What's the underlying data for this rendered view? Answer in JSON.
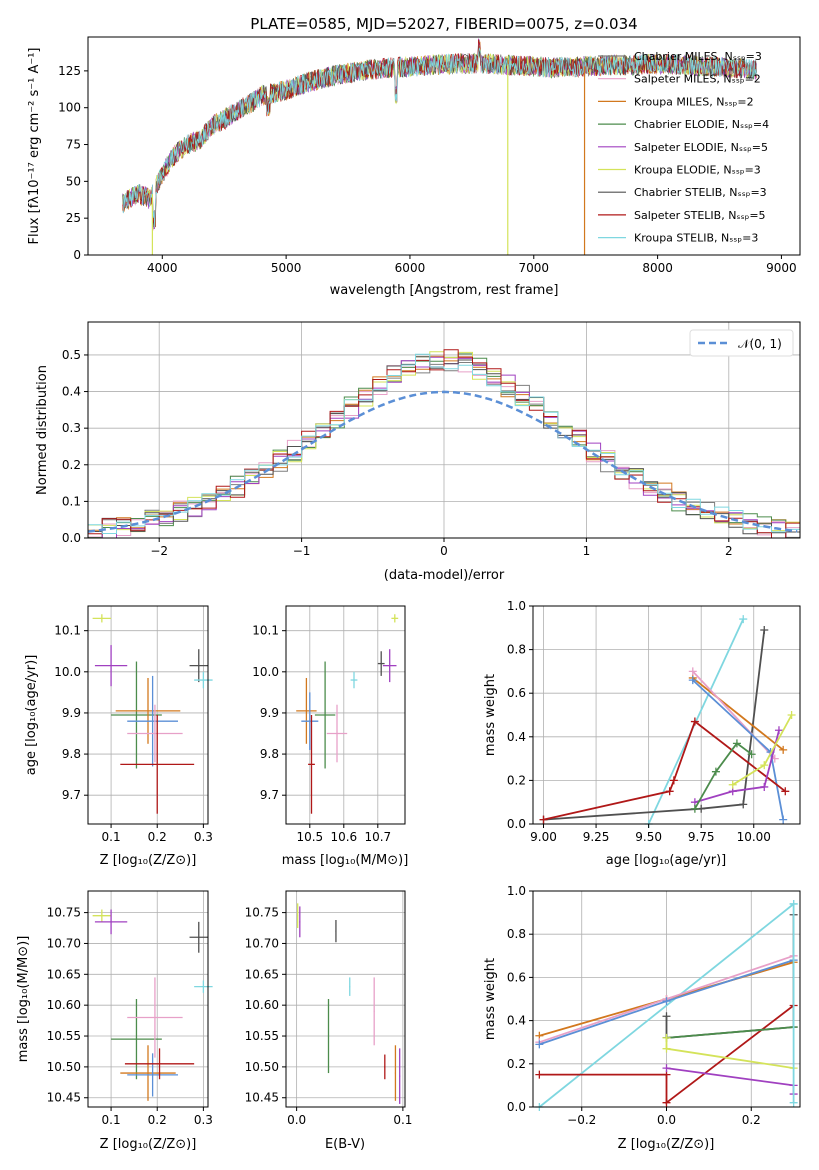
{
  "chart_data": [
    {
      "id": "spectrum",
      "type": "line",
      "title": "PLATE=0585, MJD=52027, FIBERID=0075, z=0.034",
      "xlabel": "wavelength [Angstrom, rest frame]",
      "ylabel": "Flux [fλ10⁻¹⁷ erg cm⁻² s⁻¹ A⁻¹]",
      "xlim": [
        3400,
        9150
      ],
      "ylim": [
        0,
        148
      ],
      "xticks": [
        "4000",
        "5000",
        "6000",
        "7000",
        "8000",
        "9000"
      ],
      "yticks": [
        "0",
        "25",
        "50",
        "75",
        "100",
        "125"
      ],
      "legend_position": "top-right",
      "legend": [
        {
          "name": "Chabrier MILES, Nₛₛₚ=3",
          "color": "#7f7f7f"
        },
        {
          "name": "Salpeter MILES, Nₛₛₚ=2",
          "color": "#e7a0c8"
        },
        {
          "name": "Kroupa MILES, Nₛₛₚ=2",
          "color": "#d2781e"
        },
        {
          "name": "Chabrier ELODIE, Nₛₛₚ=4",
          "color": "#4c8c4c"
        },
        {
          "name": "Salpeter ELODIE, Nₛₛₚ=5",
          "color": "#a040c0"
        },
        {
          "name": "Kroupa ELODIE, Nₛₛₚ=3",
          "color": "#d4e35a"
        },
        {
          "name": "Chabrier STELIB, Nₛₛₚ=3",
          "color": "#505050"
        },
        {
          "name": "Salpeter STELIB, Nₛₛₚ=5",
          "color": "#b01818"
        },
        {
          "name": "Kroupa STELIB, Nₛₛₚ=3",
          "color": "#7fd7e0"
        }
      ],
      "continuum": {
        "x": [
          3680,
          3800,
          3900,
          4000,
          4100,
          4200,
          4300,
          4400,
          4500,
          4600,
          4700,
          4800,
          4900,
          5000,
          5200,
          5400,
          5600,
          5800,
          6000,
          6200,
          6400,
          6600,
          6800,
          7000,
          7200,
          7400,
          7600,
          7800,
          8000,
          8200,
          8400,
          8600,
          8800
        ],
        "y": [
          35,
          42,
          38,
          55,
          68,
          75,
          78,
          88,
          92,
          98,
          102,
          108,
          110,
          112,
          118,
          122,
          125,
          127,
          128,
          129,
          130,
          130,
          129,
          128,
          127,
          128,
          129,
          129,
          130,
          129,
          128,
          127,
          126
        ]
      },
      "dropouts": [
        {
          "x": 3920,
          "color": "#d4e35a"
        },
        {
          "x": 6790,
          "color": "#d4e35a"
        },
        {
          "x": 7410,
          "color": "#d2781e"
        }
      ]
    },
    {
      "id": "residuals",
      "type": "line",
      "xlabel": "(data-model)/error",
      "ylabel": "Normed distribution",
      "xlim": [
        -2.5,
        2.5
      ],
      "ylim": [
        0,
        0.59
      ],
      "xticks": [
        "−2",
        "−1",
        "0",
        "1",
        "2"
      ],
      "yticks": [
        "0.0",
        "0.1",
        "0.2",
        "0.3",
        "0.4",
        "0.5"
      ],
      "legend_position": "top-right",
      "legend": [
        {
          "name": "𝒩(0, 1)",
          "color": "#5b8fd6"
        }
      ],
      "histogram_bin_width": 0.1,
      "histogram_colors": [
        "#7f7f7f",
        "#e7a0c8",
        "#d2781e",
        "#4c8c4c",
        "#a040c0",
        "#d4e35a",
        "#505050",
        "#b01818",
        "#7fd7e0"
      ]
    },
    {
      "id": "age-vs-Z",
      "type": "scatter",
      "xlabel": "Z [log₁₀(Z/Z⊙)]",
      "ylabel": "age  [log₁₀(age/yr)]",
      "xlim": [
        0.05,
        0.31
      ],
      "ylim": [
        9.63,
        10.16
      ],
      "xticks": [
        "0.1",
        "0.2",
        "0.3"
      ],
      "yticks": [
        "9.7",
        "9.8",
        "9.9",
        "10.0",
        "10.1"
      ],
      "points": [
        {
          "x": 0.08,
          "y": 10.13,
          "xerr": 0.02,
          "yerr": 0.01,
          "color": "#d4e35a"
        },
        {
          "x": 0.1,
          "y": 10.015,
          "xerr": 0.035,
          "yerr": 0.05,
          "color": "#a040c0"
        },
        {
          "x": 0.29,
          "y": 10.015,
          "xerr": 0.02,
          "yerr": 0.04,
          "color": "#505050"
        },
        {
          "x": 0.3,
          "y": 9.98,
          "xerr": 0.02,
          "yerr": 0.02,
          "color": "#7fd7e0"
        },
        {
          "x": 0.155,
          "y": 9.895,
          "xerr": 0.055,
          "yerr": 0.13,
          "color": "#4c8c4c"
        },
        {
          "x": 0.18,
          "y": 9.905,
          "xerr": 0.07,
          "yerr": 0.08,
          "color": "#d2781e"
        },
        {
          "x": 0.19,
          "y": 9.88,
          "xerr": 0.055,
          "yerr": 0.11,
          "color": "#5b8fd6"
        },
        {
          "x": 0.195,
          "y": 9.85,
          "xerr": 0.06,
          "yerr": 0.07,
          "color": "#e7a0c8"
        },
        {
          "x": 0.2,
          "y": 9.775,
          "xerr": 0.08,
          "yerr": 0.12,
          "color": "#b01818"
        }
      ]
    },
    {
      "id": "age-vs-mass",
      "type": "scatter",
      "xlabel": "mass [log₁₀(M/M⊙)]",
      "ylabel": "",
      "xlim": [
        10.43,
        10.78
      ],
      "ylim": [
        9.63,
        10.16
      ],
      "xticks": [
        "10.5",
        "10.6",
        "10.7"
      ],
      "yticks": [
        "9.7",
        "9.8",
        "9.9",
        "10.0",
        "10.1"
      ],
      "points": [
        {
          "x": 10.75,
          "y": 10.13,
          "xerr": 0.01,
          "yerr": 0.01,
          "color": "#d4e35a"
        },
        {
          "x": 10.735,
          "y": 10.015,
          "xerr": 0.02,
          "yerr": 0.04,
          "color": "#a040c0"
        },
        {
          "x": 10.71,
          "y": 10.02,
          "xerr": 0.01,
          "yerr": 0.03,
          "color": "#505050"
        },
        {
          "x": 10.63,
          "y": 9.98,
          "xerr": 0.01,
          "yerr": 0.02,
          "color": "#7fd7e0"
        },
        {
          "x": 10.545,
          "y": 9.895,
          "xerr": 0.03,
          "yerr": 0.13,
          "color": "#4c8c4c"
        },
        {
          "x": 10.49,
          "y": 9.905,
          "xerr": 0.03,
          "yerr": 0.08,
          "color": "#d2781e"
        },
        {
          "x": 10.5,
          "y": 9.88,
          "xerr": 0.025,
          "yerr": 0.07,
          "color": "#5b8fd6"
        },
        {
          "x": 10.58,
          "y": 9.85,
          "xerr": 0.03,
          "yerr": 0.07,
          "color": "#e7a0c8"
        },
        {
          "x": 10.505,
          "y": 9.775,
          "xerr": 0.01,
          "yerr": 0.12,
          "color": "#b01818"
        }
      ]
    },
    {
      "id": "weight-vs-age",
      "type": "line",
      "xlabel": "age  [log₁₀(age/yr)]",
      "ylabel": "mass weight",
      "xlim": [
        8.95,
        10.22
      ],
      "ylim": [
        0,
        1.0
      ],
      "xticks": [
        "9.00",
        "9.25",
        "9.50",
        "9.75",
        "10.00"
      ],
      "yticks": [
        "0.0",
        "0.2",
        "0.4",
        "0.6",
        "0.8",
        "1.0"
      ],
      "series": [
        {
          "color": "#7fd7e0",
          "x": [
            9.5,
            9.95
          ],
          "y": [
            0.0,
            0.94
          ]
        },
        {
          "color": "#505050",
          "x": [
            9.0,
            9.75,
            9.95,
            10.05
          ],
          "y": [
            0.02,
            0.07,
            0.09,
            0.89
          ]
        },
        {
          "color": "#d2781e",
          "x": [
            9.71,
            10.14
          ],
          "y": [
            0.67,
            0.34
          ]
        },
        {
          "color": "#e7a0c8",
          "x": [
            9.71,
            10.1
          ],
          "y": [
            0.7,
            0.3
          ]
        },
        {
          "color": "#5b8fd6",
          "x": [
            9.71,
            10.08,
            10.14
          ],
          "y": [
            0.66,
            0.33,
            0.02
          ]
        },
        {
          "color": "#b01818",
          "x": [
            9.0,
            9.6,
            9.62,
            9.72,
            10.15
          ],
          "y": [
            0.02,
            0.15,
            0.2,
            0.47,
            0.15
          ]
        },
        {
          "color": "#a040c0",
          "x": [
            9.72,
            9.9,
            10.05,
            10.12
          ],
          "y": [
            0.1,
            0.15,
            0.17,
            0.43
          ]
        },
        {
          "color": "#4c8c4c",
          "x": [
            9.72,
            9.82,
            9.92,
            9.99
          ],
          "y": [
            0.07,
            0.24,
            0.37,
            0.32
          ]
        },
        {
          "color": "#d4e35a",
          "x": [
            9.9,
            10.05,
            10.18
          ],
          "y": [
            0.18,
            0.27,
            0.5
          ]
        }
      ]
    },
    {
      "id": "mass-vs-Z",
      "type": "scatter",
      "xlabel": "Z [log₁₀(Z/Z⊙)]",
      "ylabel": "mass [log₁₀(M/M⊙)]",
      "xlim": [
        0.05,
        0.31
      ],
      "ylim": [
        10.435,
        10.785
      ],
      "xticks": [
        "0.1",
        "0.2",
        "0.3"
      ],
      "yticks": [
        "10.45",
        "10.50",
        "10.55",
        "10.60",
        "10.65",
        "10.70",
        "10.75"
      ],
      "points": [
        {
          "x": 0.08,
          "y": 10.745,
          "xerr": 0.02,
          "yerr": 0.01,
          "color": "#d4e35a"
        },
        {
          "x": 0.1,
          "y": 10.735,
          "xerr": 0.035,
          "yerr": 0.02,
          "color": "#a040c0"
        },
        {
          "x": 0.29,
          "y": 10.71,
          "xerr": 0.02,
          "yerr": 0.025,
          "color": "#505050"
        },
        {
          "x": 0.3,
          "y": 10.63,
          "xerr": 0.02,
          "yerr": 0.01,
          "color": "#7fd7e0"
        },
        {
          "x": 0.155,
          "y": 10.545,
          "xerr": 0.055,
          "yerr": 0.065,
          "color": "#4c8c4c"
        },
        {
          "x": 0.18,
          "y": 10.49,
          "xerr": 0.06,
          "yerr": 0.045,
          "color": "#d2781e"
        },
        {
          "x": 0.19,
          "y": 10.487,
          "xerr": 0.055,
          "yerr": 0.035,
          "color": "#5b8fd6"
        },
        {
          "x": 0.195,
          "y": 10.58,
          "xerr": 0.06,
          "yerr": 0.065,
          "color": "#e7a0c8"
        },
        {
          "x": 0.205,
          "y": 10.505,
          "xerr": 0.075,
          "yerr": 0.025,
          "color": "#b01818"
        }
      ]
    },
    {
      "id": "mass-vs-ebv",
      "type": "scatter",
      "xlabel": "E(B-V)",
      "ylabel": "",
      "xlim": [
        -0.01,
        0.102
      ],
      "ylim": [
        10.435,
        10.785
      ],
      "xticks": [
        "0.0",
        "0.1"
      ],
      "yticks": [
        "10.45",
        "10.50",
        "10.55",
        "10.60",
        "10.65",
        "10.70",
        "10.75"
      ],
      "points": [
        {
          "x": 0.001,
          "y": 10.745,
          "xerr": 0.0005,
          "yerr": 0.02,
          "color": "#d4e35a"
        },
        {
          "x": 0.003,
          "y": 10.735,
          "xerr": 0.0005,
          "yerr": 0.025,
          "color": "#a040c0"
        },
        {
          "x": 0.037,
          "y": 10.72,
          "xerr": 0.0005,
          "yerr": 0.018,
          "color": "#505050"
        },
        {
          "x": 0.05,
          "y": 10.63,
          "xerr": 0.0005,
          "yerr": 0.015,
          "color": "#7fd7e0"
        },
        {
          "x": 0.03,
          "y": 10.55,
          "xerr": 0.0005,
          "yerr": 0.06,
          "color": "#4c8c4c"
        },
        {
          "x": 0.073,
          "y": 10.59,
          "xerr": 0.0005,
          "yerr": 0.055,
          "color": "#e7a0c8"
        },
        {
          "x": 0.083,
          "y": 10.5,
          "xerr": 0.0005,
          "yerr": 0.02,
          "color": "#b01818"
        },
        {
          "x": 0.093,
          "y": 10.49,
          "xerr": 0.0005,
          "yerr": 0.045,
          "color": "#d2781e"
        },
        {
          "x": 0.097,
          "y": 10.485,
          "xerr": 0.0005,
          "yerr": 0.045,
          "color": "#a040c0"
        }
      ]
    },
    {
      "id": "weight-vs-Z",
      "type": "line",
      "xlabel": "Z [log₁₀(Z/Z⊙)]",
      "ylabel": "mass weight",
      "xlim": [
        -0.315,
        0.315
      ],
      "ylim": [
        0,
        1.0
      ],
      "xticks": [
        "−0.2",
        "0.0",
        "0.2"
      ],
      "yticks": [
        "0.0",
        "0.2",
        "0.4",
        "0.6",
        "0.8",
        "1.0"
      ],
      "series": [
        {
          "color": "#7fd7e0",
          "x": [
            -0.3,
            0.3
          ],
          "y": [
            0.0,
            0.94
          ]
        },
        {
          "color": "#505050",
          "x": [
            0.0,
            0.0,
            0.3,
            0.3
          ],
          "y": [
            0.42,
            0.32,
            0.37,
            0.89
          ]
        },
        {
          "color": "#d2781e",
          "x": [
            -0.3,
            0.0,
            0.3
          ],
          "y": [
            0.33,
            0.5,
            0.67
          ]
        },
        {
          "color": "#e7a0c8",
          "x": [
            -0.3,
            0.0,
            0.3
          ],
          "y": [
            0.3,
            0.5,
            0.7
          ]
        },
        {
          "color": "#5b8fd6",
          "x": [
            -0.3,
            0.0,
            0.3
          ],
          "y": [
            0.29,
            0.49,
            0.68
          ]
        },
        {
          "color": "#b01818",
          "x": [
            -0.3,
            0.0,
            0.0,
            0.3
          ],
          "y": [
            0.15,
            0.15,
            0.02,
            0.47
          ]
        },
        {
          "color": "#a040c0",
          "x": [
            0.0,
            0.3,
            0.3
          ],
          "y": [
            0.18,
            0.1,
            0.06
          ]
        },
        {
          "color": "#4c8c4c",
          "x": [
            0.0,
            0.3
          ],
          "y": [
            0.32,
            0.37
          ]
        },
        {
          "color": "#d4e35a",
          "x": [
            0.0,
            0.0,
            0.3
          ],
          "y": [
            0.32,
            0.27,
            0.18
          ]
        },
        {
          "color": "#7fd7e0",
          "x": [
            0.3,
            0.3
          ],
          "y": [
            0.02,
            0.94
          ]
        }
      ]
    }
  ]
}
